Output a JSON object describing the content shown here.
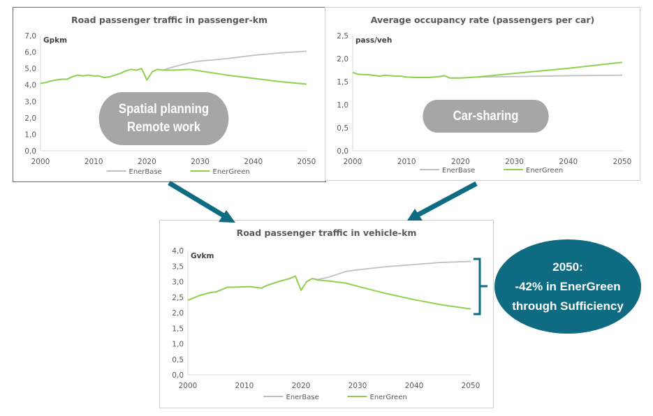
{
  "colors": {
    "enerbase": "#bfbfbf",
    "energreen": "#8fd14f",
    "accent": "#0e6b81",
    "pill": "#a6a6a6"
  },
  "chart_data": [
    {
      "type": "line",
      "title": "Road passenger traffic in passenger-km",
      "ylabel": "Gpkm",
      "ylim": [
        0,
        7
      ],
      "yticks": [
        "0,0",
        "1,0",
        "2,0",
        "3,0",
        "4,0",
        "5,0",
        "6,0",
        "7,0"
      ],
      "xticks": [
        "2000",
        "2010",
        "2020",
        "2030",
        "2040",
        "2050"
      ],
      "xlim": [
        2000,
        2050
      ],
      "legend": "bottom",
      "series": [
        {
          "name": "EnerBase",
          "x": [
            2000,
            2001,
            2002,
            2003,
            2004,
            2005,
            2006,
            2007,
            2008,
            2009,
            2010,
            2011,
            2012,
            2013,
            2014,
            2015,
            2016,
            2017,
            2018,
            2019,
            2020,
            2021,
            2022,
            2023,
            2025,
            2028,
            2030,
            2035,
            2040,
            2045,
            2050
          ],
          "y": [
            4.1,
            4.15,
            4.25,
            4.3,
            4.35,
            4.35,
            4.5,
            4.6,
            4.55,
            4.6,
            4.55,
            4.55,
            4.45,
            4.5,
            4.6,
            4.7,
            4.85,
            4.95,
            4.9,
            5.0,
            4.3,
            4.8,
            4.95,
            4.9,
            5.1,
            5.35,
            5.45,
            5.6,
            5.8,
            5.95,
            6.05
          ]
        },
        {
          "name": "EnerGreen",
          "x": [
            2000,
            2001,
            2002,
            2003,
            2004,
            2005,
            2006,
            2007,
            2008,
            2009,
            2010,
            2011,
            2012,
            2013,
            2014,
            2015,
            2016,
            2017,
            2018,
            2019,
            2020,
            2021,
            2022,
            2023,
            2025,
            2028,
            2030,
            2035,
            2040,
            2045,
            2050
          ],
          "y": [
            4.1,
            4.15,
            4.25,
            4.3,
            4.35,
            4.35,
            4.5,
            4.6,
            4.55,
            4.6,
            4.55,
            4.55,
            4.45,
            4.5,
            4.6,
            4.7,
            4.85,
            4.95,
            4.9,
            5.0,
            4.3,
            4.8,
            4.95,
            4.9,
            4.9,
            4.95,
            4.85,
            4.6,
            4.4,
            4.2,
            4.05
          ]
        }
      ],
      "annotation": [
        "Spatial planning",
        "Remote work"
      ]
    },
    {
      "type": "line",
      "title": "Average occupancy rate (passengers per car)",
      "ylabel": "pass/veh",
      "ylim": [
        0,
        2.5
      ],
      "yticks": [
        "0,0",
        "0,5",
        "1,0",
        "1,5",
        "2,0",
        "2,5"
      ],
      "xticks": [
        "2000",
        "2010",
        "2020",
        "2030",
        "2040",
        "2050"
      ],
      "xlim": [
        2000,
        2050
      ],
      "legend": "bottom",
      "series": [
        {
          "name": "EnerBase",
          "x": [
            2000,
            2001,
            2003,
            2005,
            2006,
            2008,
            2009,
            2010,
            2012,
            2014,
            2016,
            2017,
            2018,
            2020,
            2023,
            2030,
            2040,
            2050
          ],
          "y": [
            1.7,
            1.66,
            1.65,
            1.62,
            1.64,
            1.62,
            1.62,
            1.6,
            1.59,
            1.59,
            1.61,
            1.63,
            1.58,
            1.58,
            1.6,
            1.61,
            1.63,
            1.64
          ]
        },
        {
          "name": "EnerGreen",
          "x": [
            2000,
            2001,
            2003,
            2005,
            2006,
            2008,
            2009,
            2010,
            2012,
            2014,
            2016,
            2017,
            2018,
            2020,
            2023,
            2030,
            2040,
            2050
          ],
          "y": [
            1.7,
            1.66,
            1.65,
            1.62,
            1.64,
            1.62,
            1.62,
            1.6,
            1.59,
            1.59,
            1.61,
            1.63,
            1.58,
            1.58,
            1.6,
            1.68,
            1.79,
            1.92
          ]
        }
      ],
      "annotation": [
        "Car-sharing"
      ]
    },
    {
      "type": "line",
      "title": "Road passenger traffic in vehicle-km",
      "ylabel": "Gvkm",
      "ylim": [
        0,
        4
      ],
      "yticks": [
        "0,0",
        "0,5",
        "1,0",
        "1,5",
        "2,0",
        "2,5",
        "3,0",
        "3,5",
        "4,0"
      ],
      "xticks": [
        "2000",
        "2010",
        "2020",
        "2030",
        "2040",
        "2050"
      ],
      "xlim": [
        2000,
        2050
      ],
      "legend": "bottom",
      "series": [
        {
          "name": "EnerBase",
          "x": [
            2000,
            2002,
            2004,
            2005,
            2007,
            2008,
            2011,
            2013,
            2014,
            2016,
            2018,
            2019,
            2020,
            2021,
            2022,
            2023,
            2025,
            2028,
            2030,
            2035,
            2040,
            2045,
            2050
          ],
          "y": [
            2.4,
            2.55,
            2.65,
            2.67,
            2.82,
            2.82,
            2.84,
            2.79,
            2.88,
            3.0,
            3.1,
            3.18,
            2.72,
            3.0,
            3.1,
            3.07,
            3.15,
            3.33,
            3.38,
            3.48,
            3.55,
            3.62,
            3.65
          ]
        },
        {
          "name": "EnerGreen",
          "x": [
            2000,
            2002,
            2004,
            2005,
            2007,
            2008,
            2011,
            2013,
            2014,
            2016,
            2018,
            2019,
            2020,
            2021,
            2022,
            2023,
            2025,
            2028,
            2030,
            2035,
            2040,
            2045,
            2050
          ],
          "y": [
            2.4,
            2.55,
            2.65,
            2.67,
            2.82,
            2.82,
            2.84,
            2.79,
            2.88,
            3.0,
            3.1,
            3.18,
            2.72,
            3.0,
            3.1,
            3.05,
            3.02,
            2.95,
            2.85,
            2.62,
            2.42,
            2.25,
            2.12
          ]
        }
      ]
    }
  ],
  "callout": [
    "2050:",
    "-42% in EnerGreen",
    "through Sufficiency"
  ]
}
